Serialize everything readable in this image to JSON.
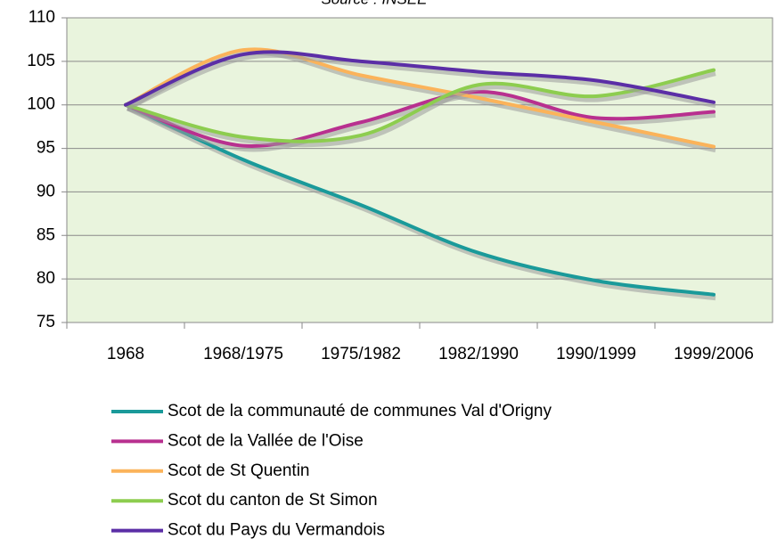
{
  "chart_data": {
    "type": "line",
    "subtitle": "Source : INSEE",
    "categories": [
      "1968",
      "1968/1975",
      "1975/1982",
      "1982/1990",
      "1990/1999",
      "1999/2006"
    ],
    "series": [
      {
        "name": "Scot de la communauté de communes Val d'Origny",
        "color": "#1a9a9a",
        "values": [
          100,
          93.7,
          88.5,
          83,
          79.8,
          78.2
        ]
      },
      {
        "name": "Scot de la Vallée de l'Oise",
        "color": "#b8308f",
        "values": [
          100,
          95.3,
          98,
          101.5,
          98.5,
          99.2
        ]
      },
      {
        "name": "Scot de St Quentin",
        "color": "#fbb35a",
        "values": [
          100,
          106.3,
          103.4,
          100.8,
          98,
          95.2
        ]
      },
      {
        "name": "Scot du canton de St Simon",
        "color": "#8dcd4f",
        "values": [
          100,
          96.3,
          96.5,
          102.3,
          101,
          104
        ]
      },
      {
        "name": "Scot du Pays du Vermandois",
        "color": "#5b2ea6",
        "values": [
          100,
          105.8,
          105,
          103.8,
          102.8,
          100.3
        ]
      }
    ],
    "ylim": [
      75,
      110
    ],
    "yticks": [
      75,
      80,
      85,
      90,
      95,
      100,
      105,
      110
    ],
    "grid": true,
    "smooth": true,
    "legend": "bottom"
  }
}
